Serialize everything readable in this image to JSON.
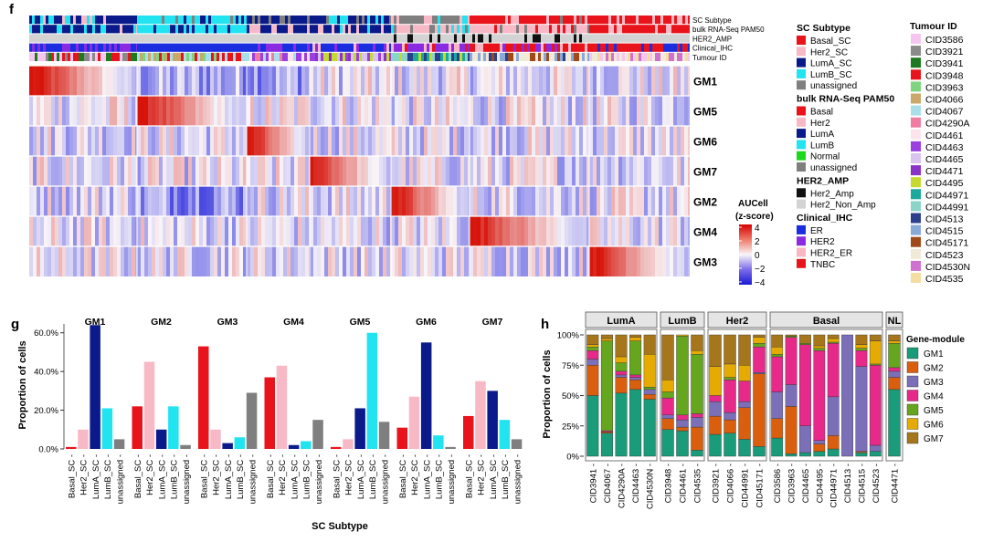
{
  "panel_labels": {
    "f": "f",
    "g": "g",
    "h": "h"
  },
  "annotation_tracks": [
    "SC Subtype",
    "bulk RNA-Seq PAM50",
    "HER2_AMP",
    "Clinical_IHC",
    "Tumour ID"
  ],
  "colorbar": {
    "title1": "AUCell",
    "title2": "(z-score)",
    "ticks": [
      "4",
      "2",
      "0",
      "−2",
      "−4"
    ]
  },
  "legend_groups": [
    {
      "title": "SC Subtype",
      "items": [
        {
          "label": "Basal_SC",
          "color": "#e8131b"
        },
        {
          "label": "Her2_SC",
          "color": "#f8b9c6"
        },
        {
          "label": "LumA_SC",
          "color": "#0b1a8a"
        },
        {
          "label": "LumB_SC",
          "color": "#22e3f0"
        },
        {
          "label": "unassigned",
          "color": "#7f7f7f"
        }
      ]
    },
    {
      "title": "bulk RNA-Seq PAM50",
      "items": [
        {
          "label": "Basal",
          "color": "#e8131b"
        },
        {
          "label": "Her2",
          "color": "#f8b9c6"
        },
        {
          "label": "LumA",
          "color": "#0b1a8a"
        },
        {
          "label": "LumB",
          "color": "#22e3f0"
        },
        {
          "label": "Normal",
          "color": "#1ed81e"
        },
        {
          "label": "unassigned",
          "color": "#7f7f7f"
        }
      ]
    },
    {
      "title": "HER2_AMP",
      "items": [
        {
          "label": "Her2_Amp",
          "color": "#111111"
        },
        {
          "label": "Her2_Non_Amp",
          "color": "#d3d3d3"
        }
      ]
    },
    {
      "title": "Clinical_IHC",
      "items": [
        {
          "label": "ER",
          "color": "#1a2ee0"
        },
        {
          "label": "HER2",
          "color": "#8a2be2"
        },
        {
          "label": "HER2_ER",
          "color": "#f9b7c3"
        },
        {
          "label": "TNBC",
          "color": "#e8131b"
        }
      ]
    }
  ],
  "tumour_legend": {
    "title": "Tumour ID",
    "items": [
      {
        "label": "CID3586",
        "color": "#f5c6f0"
      },
      {
        "label": "CID3921",
        "color": "#8a8a8a"
      },
      {
        "label": "CID3941",
        "color": "#1e7a1e"
      },
      {
        "label": "CID3948",
        "color": "#e8131b"
      },
      {
        "label": "CID3963",
        "color": "#7fd47f"
      },
      {
        "label": "CID4066",
        "color": "#c9a86a"
      },
      {
        "label": "CID4067",
        "color": "#a9dfe8"
      },
      {
        "label": "CID4290A",
        "color": "#f07ca0"
      },
      {
        "label": "CID4461",
        "color": "#fde4ec"
      },
      {
        "label": "CID4463",
        "color": "#9b3fe0"
      },
      {
        "label": "CID4465",
        "color": "#d9c4f0"
      },
      {
        "label": "CID4471",
        "color": "#8b33c7"
      },
      {
        "label": "CID4495",
        "color": "#c6d92e"
      },
      {
        "label": "CID44971",
        "color": "#1aa99a"
      },
      {
        "label": "CID44991",
        "color": "#8ad4c8"
      },
      {
        "label": "CID4513",
        "color": "#2b3f8c"
      },
      {
        "label": "CID4515",
        "color": "#89a9d9"
      },
      {
        "label": "CID45171",
        "color": "#a04a1a"
      },
      {
        "label": "CID4523",
        "color": "#f2ead8"
      },
      {
        "label": "CID4530N",
        "color": "#d070d0"
      },
      {
        "label": "CID4535",
        "color": "#f5dca0"
      }
    ]
  },
  "chart_data": [
    {
      "type": "heatmap",
      "title": "",
      "rows": [
        "GM1",
        "GM5",
        "GM6",
        "GM7",
        "GM2",
        "GM4",
        "GM3"
      ],
      "column_groups": [
        "GM1",
        "GM5",
        "GM6",
        "GM7",
        "GM2",
        "GM4",
        "GM3"
      ],
      "color_scale": {
        "label": "AUCell (z-score)",
        "min": -4,
        "max": 4
      }
    },
    {
      "type": "bar",
      "ylabel": "Proportion of cells",
      "xlabel": "SC Subtype",
      "yticks": [
        "0.0%",
        "20.0%",
        "40.0%",
        "60.0%"
      ],
      "ylim": [
        0,
        0.66
      ],
      "categories": [
        "Basal_SC",
        "Her2_SC",
        "LumA_SC",
        "LumB_SC",
        "unassigned"
      ],
      "colors": [
        "#e8131b",
        "#f8b9c6",
        "#0b1a8a",
        "#22e3f0",
        "#7f7f7f"
      ],
      "panels": [
        {
          "title": "GM1",
          "values": [
            0.01,
            0.1,
            0.64,
            0.21,
            0.05
          ]
        },
        {
          "title": "GM2",
          "values": [
            0.22,
            0.45,
            0.1,
            0.22,
            0.02
          ]
        },
        {
          "title": "GM3",
          "values": [
            0.53,
            0.1,
            0.03,
            0.06,
            0.29
          ]
        },
        {
          "title": "GM4",
          "values": [
            0.37,
            0.43,
            0.02,
            0.04,
            0.15
          ]
        },
        {
          "title": "GM5",
          "values": [
            0.01,
            0.05,
            0.21,
            0.6,
            0.14
          ]
        },
        {
          "title": "GM6",
          "values": [
            0.11,
            0.27,
            0.55,
            0.07,
            0.01
          ]
        },
        {
          "title": "GM7",
          "values": [
            0.17,
            0.35,
            0.3,
            0.15,
            0.05
          ]
        }
      ]
    },
    {
      "type": "bar",
      "stacked": true,
      "ylabel": "Proportion of cells",
      "yticks": [
        "0%",
        "25%",
        "50%",
        "75%",
        "100%"
      ],
      "legend_title": "Gene-module",
      "modules": [
        "GM1",
        "GM2",
        "GM3",
        "GM4",
        "GM5",
        "GM6",
        "GM7"
      ],
      "module_colors": [
        "#1a9b7a",
        "#d95f0e",
        "#7b6fb8",
        "#e7298a",
        "#66a61e",
        "#e6ab02",
        "#a6761d"
      ],
      "groups": [
        {
          "name": "LumA",
          "tumours": [
            {
              "id": "CID3941",
              "values": [
                0.5,
                0.25,
                0.05,
                0.07,
                0.03,
                0.02,
                0.08
              ]
            },
            {
              "id": "CID4067",
              "values": [
                0.19,
                0.01,
                0.0,
                0.01,
                0.74,
                0.02,
                0.03
              ]
            },
            {
              "id": "CID4290A",
              "values": [
                0.52,
                0.13,
                0.02,
                0.03,
                0.07,
                0.05,
                0.18
              ]
            },
            {
              "id": "CID4463",
              "values": [
                0.55,
                0.08,
                0.02,
                0.02,
                0.28,
                0.03,
                0.02
              ]
            },
            {
              "id": "CID4530N",
              "values": [
                0.47,
                0.04,
                0.04,
                0.0,
                0.02,
                0.27,
                0.16
              ]
            }
          ]
        },
        {
          "name": "LumB",
          "tumours": [
            {
              "id": "CID3948",
              "values": [
                0.22,
                0.09,
                0.03,
                0.14,
                0.05,
                0.1,
                0.37
              ]
            },
            {
              "id": "CID4461",
              "values": [
                0.21,
                0.03,
                0.06,
                0.04,
                0.65,
                0.01,
                0.0
              ]
            },
            {
              "id": "CID4535",
              "values": [
                0.05,
                0.19,
                0.08,
                0.03,
                0.49,
                0.03,
                0.13
              ]
            }
          ]
        },
        {
          "name": "Her2",
          "tumours": [
            {
              "id": "CID3921",
              "values": [
                0.18,
                0.15,
                0.12,
                0.05,
                0.0,
                0.24,
                0.26
              ]
            },
            {
              "id": "CID4066",
              "values": [
                0.19,
                0.11,
                0.06,
                0.27,
                0.02,
                0.11,
                0.24
              ]
            },
            {
              "id": "CID44991",
              "values": [
                0.14,
                0.26,
                0.05,
                0.17,
                0.0,
                0.13,
                0.25
              ]
            },
            {
              "id": "CID45171",
              "values": [
                0.08,
                0.6,
                0.01,
                0.21,
                0.03,
                0.05,
                0.02
              ]
            }
          ]
        },
        {
          "name": "Basal",
          "tumours": [
            {
              "id": "CID3586",
              "values": [
                0.15,
                0.16,
                0.22,
                0.29,
                0.02,
                0.06,
                0.1
              ]
            },
            {
              "id": "CID3963",
              "values": [
                0.02,
                0.39,
                0.18,
                0.39,
                0.01,
                0.0,
                0.01
              ]
            },
            {
              "id": "CID4465",
              "values": [
                0.03,
                0.0,
                0.22,
                0.67,
                0.01,
                0.0,
                0.07
              ]
            },
            {
              "id": "CID4495",
              "values": [
                0.04,
                0.06,
                0.03,
                0.74,
                0.02,
                0.02,
                0.09
              ]
            },
            {
              "id": "CID44971",
              "values": [
                0.06,
                0.11,
                0.32,
                0.44,
                0.01,
                0.03,
                0.03
              ]
            },
            {
              "id": "CID4513",
              "values": [
                0.0,
                0.0,
                1.0,
                0.0,
                0.0,
                0.0,
                0.0
              ]
            },
            {
              "id": "CID4515",
              "values": [
                0.03,
                0.01,
                0.7,
                0.13,
                0.02,
                0.03,
                0.08
              ]
            },
            {
              "id": "CID4523",
              "values": [
                0.04,
                0.0,
                0.05,
                0.66,
                0.01,
                0.19,
                0.05
              ]
            }
          ]
        },
        {
          "name": "NL",
          "tumours": [
            {
              "id": "CID4471",
              "values": [
                0.55,
                0.1,
                0.05,
                0.03,
                0.2,
                0.02,
                0.05
              ]
            }
          ]
        }
      ]
    }
  ]
}
